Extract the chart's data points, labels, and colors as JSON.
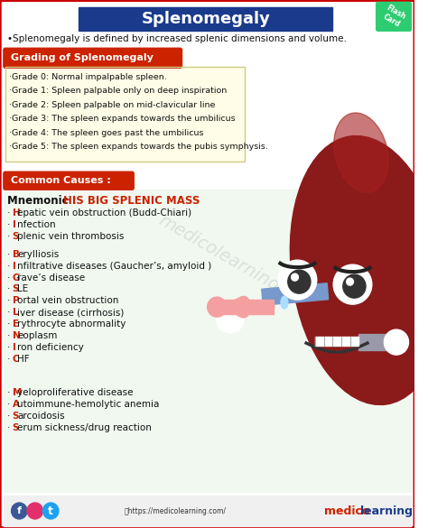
{
  "title": "Splenomegaly",
  "title_bg": "#1a3a8c",
  "title_color": "#ffffff",
  "subtitle": "•Splenomegaly is defined by increased splenic dimensions and volume.",
  "bg_color": "#ffffff",
  "border_color": "#cc0000",
  "grading_header": "Grading of Splenomegaly",
  "grading_bg": "#cc2200",
  "grading_text_bg": "#fffde7",
  "grading_items": [
    "·Grade 0: Normal impalpable spleen.",
    "·Grade 1: Spleen palpable only on deep inspiration",
    "·Grade 2: Spleen palpable on mid-clavicular line",
    "·Grade 3: The spleen expands towards the umbilicus",
    "·Grade 4: The spleen goes past the umbilicus",
    "·Grade 5: The spleen expands towards the pubis symphysis."
  ],
  "causes_header": "Common Causes :",
  "causes_bg": "#cc2200",
  "mnemonic_label": "Mnemonic : ",
  "mnemonic_text": "HIS BIG SPLENIC MASS",
  "mnemonic_color": "#cc2200",
  "causes_bg_section": "#f0f8f0",
  "h_items": [
    "·Hepatic vein obstruction (Budd-Chiari)",
    "·Infection",
    "·Splenic vein thrombosis"
  ],
  "b_items": [
    "·Berylliosis",
    "·Infiltrative diseases (Gaucher’s, amyloid )",
    "·Grave’s disease"
  ],
  "s_items": [
    "·SLE",
    "·Portal vein obstruction",
    "·Liver disease (cirrhosis)",
    "·Erythrocyte abnormality",
    "·Neoplasm",
    "·Iron deficiency",
    "·CHF"
  ],
  "m_items": [
    "·Myeloproliferative disease",
    "·Autoimmune-hemolytic anemia",
    "·Sarcoidosis",
    "·Serum sickness/drug reaction"
  ],
  "footer_url": "ⓘhttps://medicolearning.com/",
  "flash_card_text": "Flash\nCard",
  "flash_card_bg": "#2ecc71",
  "watermark": "medicolearning",
  "red_letter_color": "#cc2200",
  "black_text_color": "#111111",
  "spleen_color": "#8b1a1a",
  "spleen_mid_color": "#a52020",
  "nose_color": "#f4a0a0",
  "arm_color": "#7799cc",
  "arm_r_color": "#9999aa"
}
